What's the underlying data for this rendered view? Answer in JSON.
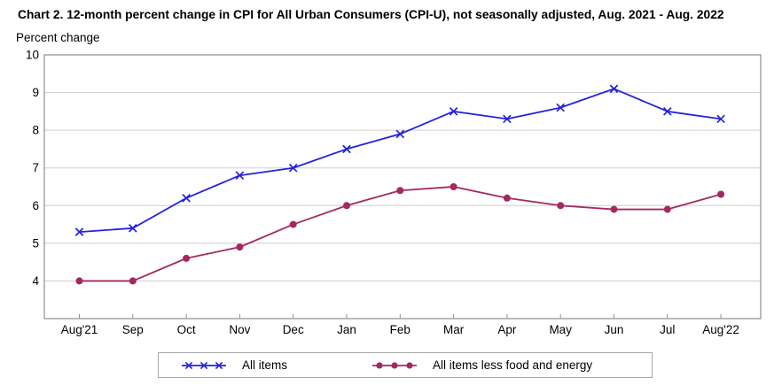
{
  "page": {
    "title": "Chart 2. 12-month percent change in CPI for All Urban Consumers (CPI-U), not seasonally adjusted, Aug. 2021 - Aug. 2022",
    "unit_label": "Percent change"
  },
  "chart_data": {
    "type": "line",
    "title": "Chart 2. 12-month percent change in CPI for All Urban Consumers (CPI-U), not seasonally adjusted, Aug. 2021 - Aug. 2022",
    "ylabel": "Percent change",
    "xlabel": "",
    "categories": [
      "Aug'21",
      "Sep",
      "Oct",
      "Nov",
      "Dec",
      "Jan",
      "Feb",
      "Mar",
      "Apr",
      "May",
      "Jun",
      "Jul",
      "Aug'22"
    ],
    "series": [
      {
        "name": "All items",
        "marker": "x",
        "color": "#2323DC",
        "values": [
          5.3,
          5.4,
          6.2,
          6.8,
          7.0,
          7.5,
          7.9,
          8.5,
          8.3,
          8.6,
          9.1,
          8.5,
          8.3
        ]
      },
      {
        "name": "All items less food and energy",
        "marker": "circle",
        "color": "#A32862",
        "values": [
          4.0,
          4.0,
          4.6,
          4.9,
          5.5,
          6.0,
          6.4,
          6.5,
          6.2,
          6.0,
          5.9,
          5.9,
          6.3
        ]
      }
    ],
    "ylim": [
      3,
      10
    ],
    "yticks": [
      4,
      5,
      6,
      7,
      8,
      9,
      10
    ],
    "grid": true,
    "legend_position": "bottom"
  },
  "colors": {
    "grid": "#CDCDCD",
    "axis_border": "#8E8E8E",
    "text": "#000000",
    "background": "#FFFFFF",
    "legend_border": "#A6A6A6"
  }
}
